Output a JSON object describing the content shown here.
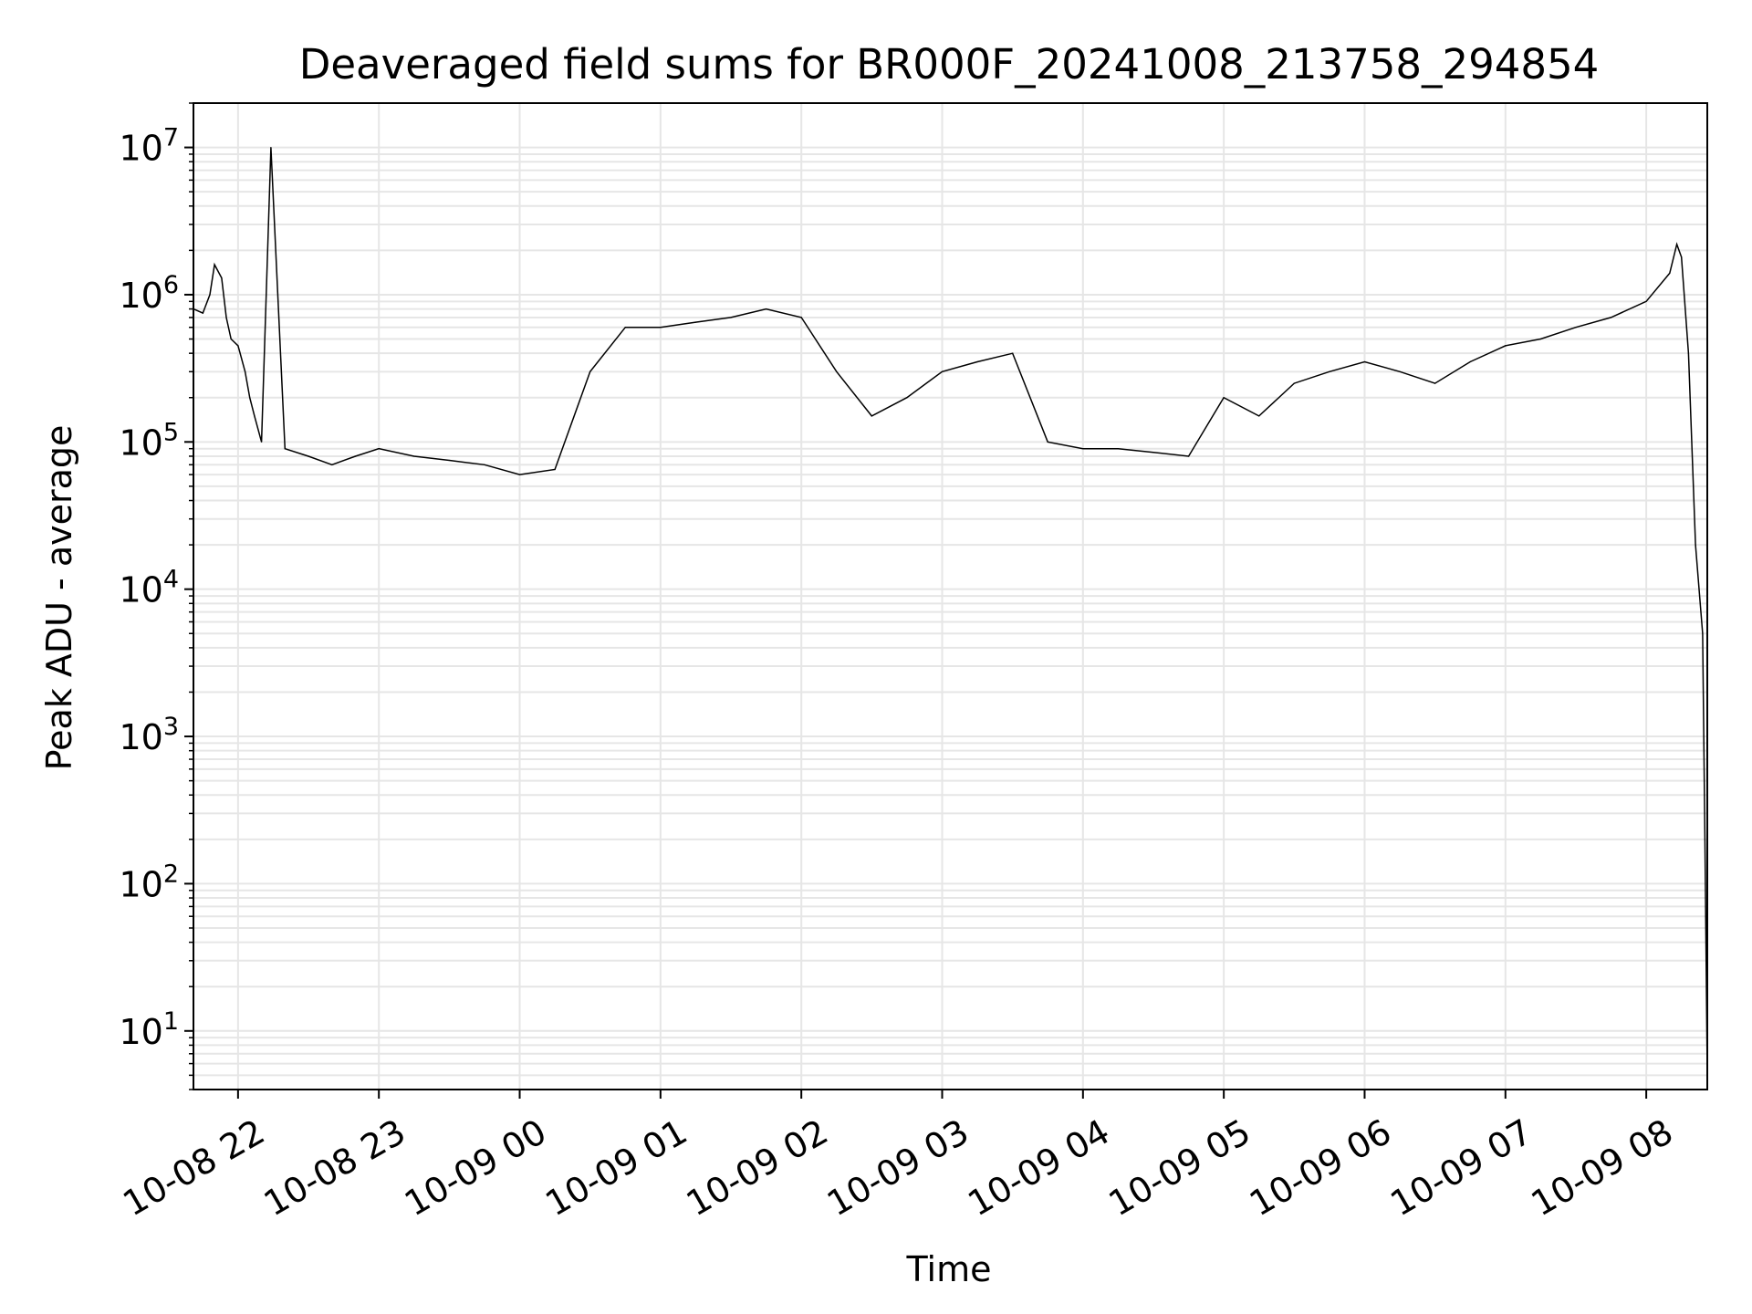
{
  "chart_data": {
    "type": "line",
    "title": "Deaveraged field sums for BR000F_20241008_213758_294854",
    "xlabel": "Time",
    "ylabel": "Peak ADU - average",
    "yscale": "log",
    "ylim": [
      4,
      20000000
    ],
    "xlim": [
      "2024-10-08 21:41",
      "2024-10-09 08:26"
    ],
    "x_ticks": [
      {
        "value": "2024-10-08 22:00",
        "label": "10-08 22"
      },
      {
        "value": "2024-10-08 23:00",
        "label": "10-08 23"
      },
      {
        "value": "2024-10-09 00:00",
        "label": "10-09 00"
      },
      {
        "value": "2024-10-09 01:00",
        "label": "10-09 01"
      },
      {
        "value": "2024-10-09 02:00",
        "label": "10-09 02"
      },
      {
        "value": "2024-10-09 03:00",
        "label": "10-09 03"
      },
      {
        "value": "2024-10-09 04:00",
        "label": "10-09 04"
      },
      {
        "value": "2024-10-09 05:00",
        "label": "10-09 05"
      },
      {
        "value": "2024-10-09 06:00",
        "label": "10-09 06"
      },
      {
        "value": "2024-10-09 07:00",
        "label": "10-09 07"
      },
      {
        "value": "2024-10-09 08:00",
        "label": "10-09 08"
      }
    ],
    "y_ticks": [
      {
        "value": 10,
        "base": "10",
        "exp": "1"
      },
      {
        "value": 100,
        "base": "10",
        "exp": "2"
      },
      {
        "value": 1000,
        "base": "10",
        "exp": "3"
      },
      {
        "value": 10000,
        "base": "10",
        "exp": "4"
      },
      {
        "value": 100000,
        "base": "10",
        "exp": "5"
      },
      {
        "value": 1000000,
        "base": "10",
        "exp": "6"
      },
      {
        "value": 10000000,
        "base": "10",
        "exp": "7"
      }
    ],
    "grid": true,
    "line_color": "#000000",
    "grid_color": "#e6e6e6",
    "series": [
      {
        "x": [
          "2024-10-08 21:41",
          "2024-10-08 21:45",
          "2024-10-08 21:48",
          "2024-10-08 21:50",
          "2024-10-08 21:53",
          "2024-10-08 21:55",
          "2024-10-08 21:57",
          "2024-10-08 22:00",
          "2024-10-08 22:03",
          "2024-10-08 22:05",
          "2024-10-08 22:07",
          "2024-10-08 22:10",
          "2024-10-08 22:14",
          "2024-10-08 22:20",
          "2024-10-08 22:30",
          "2024-10-08 22:40",
          "2024-10-08 22:50",
          "2024-10-08 23:00",
          "2024-10-08 23:15",
          "2024-10-08 23:30",
          "2024-10-08 23:45",
          "2024-10-09 00:00",
          "2024-10-09 00:15",
          "2024-10-09 00:30",
          "2024-10-09 00:45",
          "2024-10-09 01:00",
          "2024-10-09 01:15",
          "2024-10-09 01:30",
          "2024-10-09 01:45",
          "2024-10-09 02:00",
          "2024-10-09 02:15",
          "2024-10-09 02:30",
          "2024-10-09 02:45",
          "2024-10-09 03:00",
          "2024-10-09 03:15",
          "2024-10-09 03:30",
          "2024-10-09 03:45",
          "2024-10-09 04:00",
          "2024-10-09 04:15",
          "2024-10-09 04:30",
          "2024-10-09 04:45",
          "2024-10-09 05:00",
          "2024-10-09 05:15",
          "2024-10-09 05:30",
          "2024-10-09 05:45",
          "2024-10-09 06:00",
          "2024-10-09 06:15",
          "2024-10-09 06:30",
          "2024-10-09 06:45",
          "2024-10-09 07:00",
          "2024-10-09 07:15",
          "2024-10-09 07:30",
          "2024-10-09 07:45",
          "2024-10-09 08:00",
          "2024-10-09 08:10",
          "2024-10-09 08:13",
          "2024-10-09 08:15",
          "2024-10-09 08:18",
          "2024-10-09 08:21",
          "2024-10-09 08:24",
          "2024-10-09 08:25",
          "2024-10-09 08:26"
        ],
        "y": [
          800000,
          750000,
          1000000,
          1600000,
          1300000,
          700000,
          500000,
          450000,
          300000,
          200000,
          150000,
          100000,
          10000000,
          90000,
          80000,
          70000,
          80000,
          90000,
          80000,
          75000,
          70000,
          60000,
          65000,
          300000,
          600000,
          600000,
          650000,
          700000,
          800000,
          700000,
          300000,
          150000,
          200000,
          300000,
          350000,
          400000,
          100000,
          90000,
          90000,
          85000,
          80000,
          200000,
          150000,
          250000,
          300000,
          350000,
          300000,
          250000,
          350000,
          450000,
          500000,
          600000,
          700000,
          900000,
          1400000,
          2200000,
          1800000,
          400000,
          20000,
          5000,
          200,
          5
        ]
      }
    ],
    "notes_spikes": [
      {
        "x": "2024-10-08 22:14",
        "y": 10000000
      }
    ]
  }
}
